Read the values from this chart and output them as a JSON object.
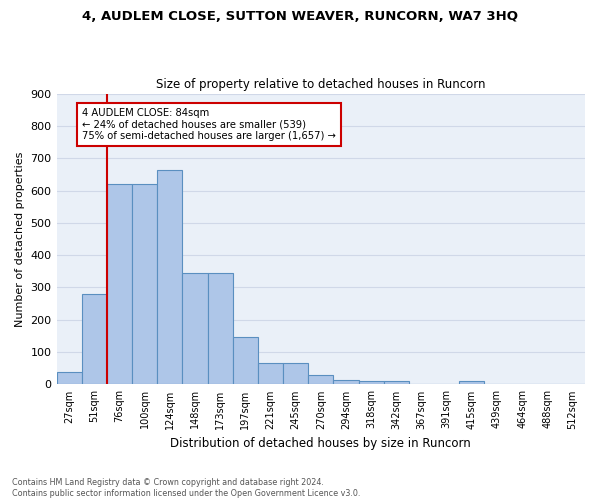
{
  "title": "4, AUDLEM CLOSE, SUTTON WEAVER, RUNCORN, WA7 3HQ",
  "subtitle": "Size of property relative to detached houses in Runcorn",
  "xlabel": "Distribution of detached houses by size in Runcorn",
  "ylabel": "Number of detached properties",
  "bar_values": [
    40,
    280,
    620,
    620,
    665,
    345,
    345,
    148,
    65,
    65,
    28,
    15,
    12,
    12,
    0,
    0,
    10,
    0,
    0,
    0,
    0
  ],
  "bin_labels": [
    "27sqm",
    "51sqm",
    "76sqm",
    "100sqm",
    "124sqm",
    "148sqm",
    "173sqm",
    "197sqm",
    "221sqm",
    "245sqm",
    "270sqm",
    "294sqm",
    "318sqm",
    "342sqm",
    "367sqm",
    "391sqm",
    "415sqm",
    "439sqm",
    "464sqm",
    "488sqm",
    "512sqm"
  ],
  "bar_color": "#aec6e8",
  "bar_edge_color": "#5a8fc0",
  "vline_x_index": 1.5,
  "annotation_line1": "4 AUDLEM CLOSE: 84sqm",
  "annotation_line2": "← 24% of detached houses are smaller (539)",
  "annotation_line3": "75% of semi-detached houses are larger (1,657) →",
  "box_color": "#cc0000",
  "vline_color": "#cc0000",
  "grid_color": "#d0d8e8",
  "background_color": "#eaf0f8",
  "ylim": [
    0,
    900
  ],
  "yticks": [
    0,
    100,
    200,
    300,
    400,
    500,
    600,
    700,
    800,
    900
  ],
  "footnote1": "Contains HM Land Registry data © Crown copyright and database right 2024.",
  "footnote2": "Contains public sector information licensed under the Open Government Licence v3.0."
}
